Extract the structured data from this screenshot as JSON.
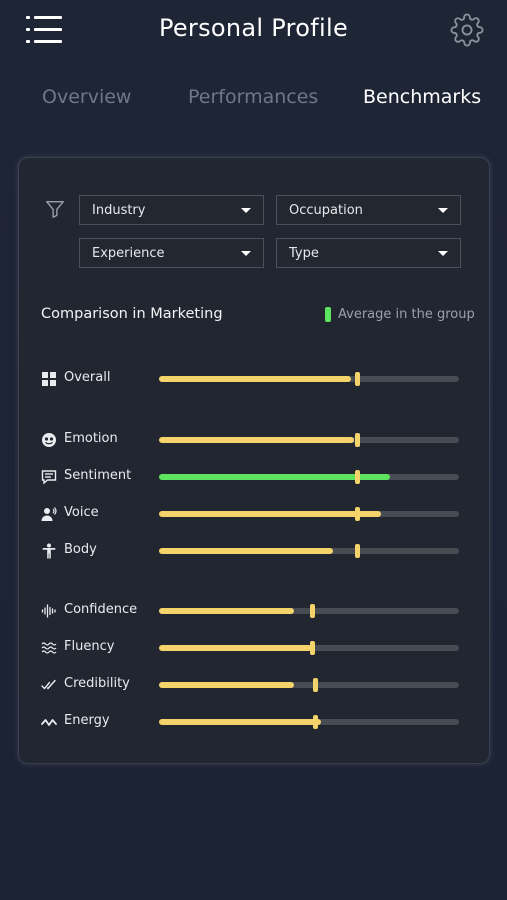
{
  "header": {
    "title": "Personal Profile",
    "menu_icon": "hamburger-menu-icon",
    "settings_icon": "gear-icon"
  },
  "tabs": [
    {
      "label": "Overview",
      "active": false
    },
    {
      "label": "Performances",
      "active": false
    },
    {
      "label": "Benchmarks",
      "active": true
    }
  ],
  "filters": {
    "icon": "filter-icon",
    "industry": "Industry",
    "occupation": "Occupation",
    "experience": "Experience",
    "type": "Type"
  },
  "comparison": {
    "title": "Comparison in Marketing",
    "legend_label": "Average in the group",
    "legend_color": "#5ee35e"
  },
  "colors": {
    "bar_fill": "#f4d36a",
    "bar_highlight": "#5ee35e",
    "track": "#474b52",
    "background": "#1d2435",
    "card": "#222630"
  },
  "metrics": [
    {
      "label": "Overall",
      "icon": "grid-icon",
      "value": 0.64,
      "average": 0.66,
      "color": "yellow"
    },
    {
      "label": "Emotion",
      "icon": "face-icon",
      "value": 0.65,
      "average": 0.66,
      "color": "yellow"
    },
    {
      "label": "Sentiment",
      "icon": "chat-bubble-icon",
      "value": 0.77,
      "average": 0.66,
      "color": "green"
    },
    {
      "label": "Voice",
      "icon": "speaker-person-icon",
      "value": 0.74,
      "average": 0.66,
      "color": "yellow"
    },
    {
      "label": "Body",
      "icon": "person-icon",
      "value": 0.58,
      "average": 0.66,
      "color": "yellow"
    },
    {
      "label": "Confidence",
      "icon": "waveform-icon",
      "value": 0.45,
      "average": 0.51,
      "color": "yellow"
    },
    {
      "label": "Fluency",
      "icon": "waves-icon",
      "value": 0.51,
      "average": 0.51,
      "color": "yellow"
    },
    {
      "label": "Credibility",
      "icon": "double-check-icon",
      "value": 0.45,
      "average": 0.52,
      "color": "yellow"
    },
    {
      "label": "Energy",
      "icon": "zigzag-icon",
      "value": 0.54,
      "average": 0.52,
      "color": "yellow"
    }
  ]
}
